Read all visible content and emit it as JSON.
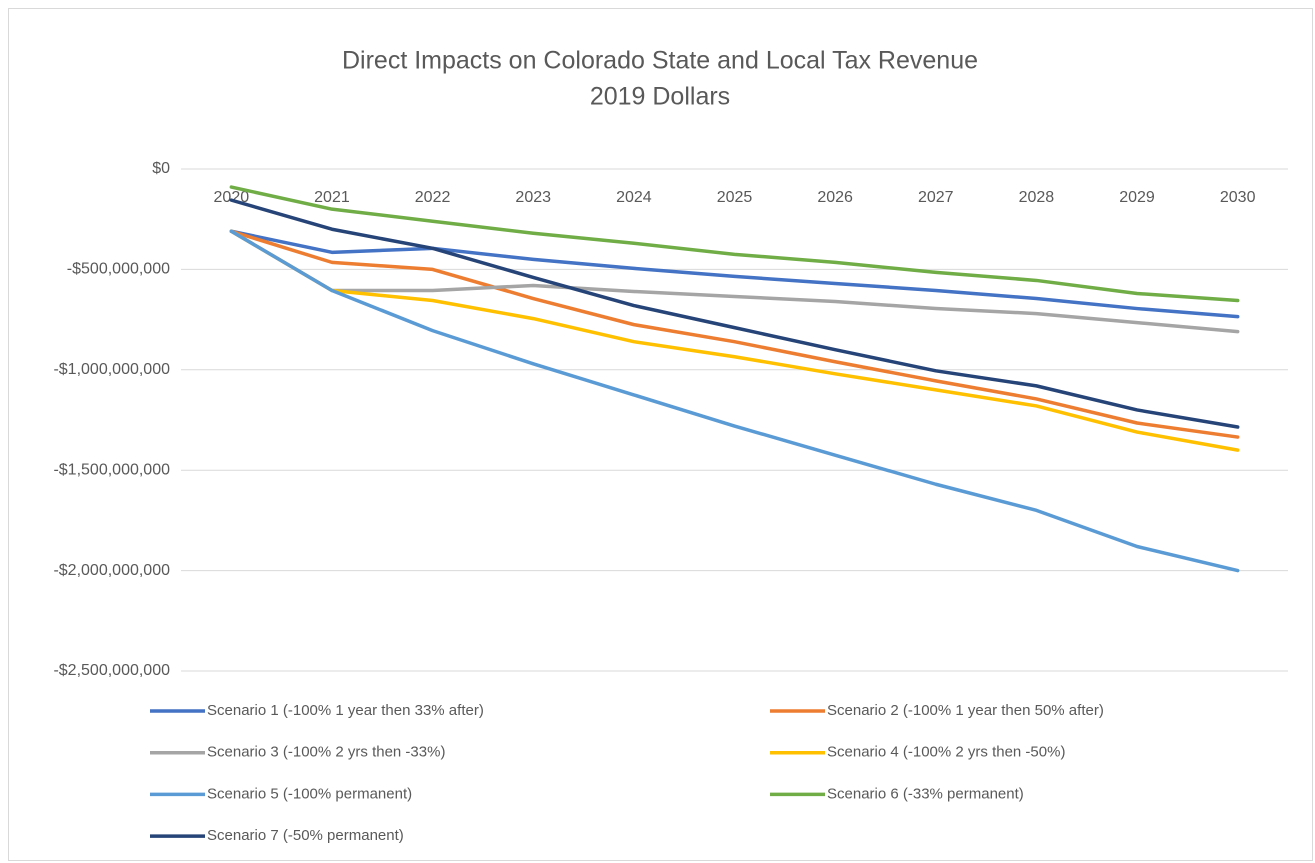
{
  "chart_data": {
    "type": "line",
    "title": "Direct Impacts on Colorado State and Local Tax Revenue",
    "subtitle": "2019 Dollars",
    "categories": [
      "2020",
      "2021",
      "2022",
      "2023",
      "2024",
      "2025",
      "2026",
      "2027",
      "2028",
      "2029",
      "2030"
    ],
    "ylim": [
      -2500000000,
      0
    ],
    "yticks": [
      {
        "value": 0,
        "label": "$0"
      },
      {
        "value": -500000000,
        "label": "-$500,000,000"
      },
      {
        "value": -1000000000,
        "label": "-$1,000,000,000"
      },
      {
        "value": -1500000000,
        "label": "-$1,500,000,000"
      },
      {
        "value": -2000000000,
        "label": "-$2,000,000,000"
      },
      {
        "value": -2500000000,
        "label": "-$2,500,000,000"
      }
    ],
    "grid": true,
    "legend": "bottom",
    "series": [
      {
        "name": "Scenario 1 (-100% 1 year then 33% after)",
        "color": "#4472c4",
        "values": [
          -310000000,
          -415000000,
          -395000000,
          -450000000,
          -495000000,
          -535000000,
          -570000000,
          -605000000,
          -645000000,
          -695000000,
          -735000000
        ]
      },
      {
        "name": "Scenario 2 (-100% 1 year then 50% after)",
        "color": "#ed7d31",
        "values": [
          -310000000,
          -465000000,
          -500000000,
          -645000000,
          -775000000,
          -860000000,
          -960000000,
          -1055000000,
          -1145000000,
          -1265000000,
          -1335000000
        ]
      },
      {
        "name": "Scenario 3 (-100% 2 yrs then -33%)",
        "color": "#a5a5a5",
        "values": [
          -310000000,
          -605000000,
          -605000000,
          -580000000,
          -610000000,
          -635000000,
          -660000000,
          -695000000,
          -720000000,
          -765000000,
          -810000000
        ]
      },
      {
        "name": "Scenario 4 (-100% 2 yrs then -50%)",
        "color": "#ffc000",
        "values": [
          -310000000,
          -605000000,
          -655000000,
          -745000000,
          -860000000,
          -935000000,
          -1020000000,
          -1100000000,
          -1180000000,
          -1310000000,
          -1400000000
        ]
      },
      {
        "name": "Scenario 5 (-100% permanent)",
        "color": "#5b9bd5",
        "values": [
          -310000000,
          -605000000,
          -805000000,
          -970000000,
          -1125000000,
          -1280000000,
          -1425000000,
          -1570000000,
          -1700000000,
          -1880000000,
          -2000000000
        ]
      },
      {
        "name": "Scenario 6 (-33% permanent)",
        "color": "#70ad47",
        "values": [
          -90000000,
          -200000000,
          -260000000,
          -320000000,
          -370000000,
          -425000000,
          -465000000,
          -515000000,
          -555000000,
          -620000000,
          -655000000
        ]
      },
      {
        "name": "Scenario 7 (-50% permanent)",
        "color": "#264478",
        "values": [
          -155000000,
          -300000000,
          -395000000,
          -540000000,
          -680000000,
          -790000000,
          -900000000,
          -1005000000,
          -1080000000,
          -1200000000,
          -1285000000
        ]
      }
    ]
  }
}
